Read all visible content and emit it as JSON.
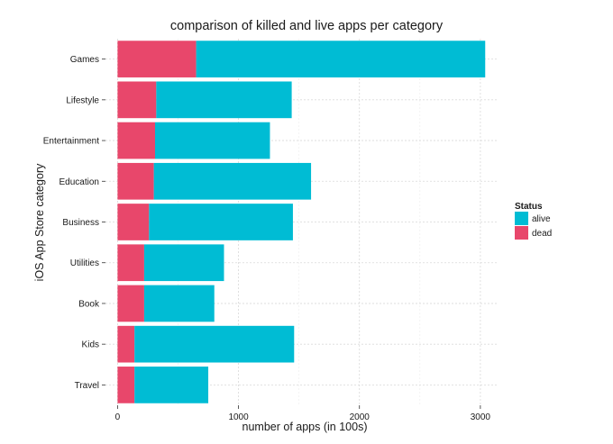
{
  "chart_data": {
    "type": "bar",
    "orientation": "horizontal",
    "stacked": true,
    "title": "comparison of killed and live apps per category",
    "xlabel": "number of apps (in 100s)",
    "ylabel": "iOS App Store category",
    "categories": [
      "Games",
      "Lifestyle",
      "Entertainment",
      "Education",
      "Business",
      "Utilities",
      "Book",
      "Kids",
      "Travel"
    ],
    "series": [
      {
        "name": "dead",
        "color": "#e8476b",
        "values": [
          650,
          320,
          310,
          300,
          260,
          220,
          220,
          140,
          140
        ]
      },
      {
        "name": "alive",
        "color": "#00bcd4",
        "values": [
          2390,
          1120,
          950,
          1300,
          1190,
          660,
          580,
          1320,
          610
        ]
      }
    ],
    "xlim": [
      -100,
      3150
    ],
    "xticks": [
      0,
      1000,
      2000,
      3000
    ],
    "xtick_labels": [
      "0",
      "1000",
      "2000",
      "3000"
    ],
    "grid": true,
    "legend": {
      "title": "Status",
      "placement": "right",
      "entries": [
        {
          "label": "alive",
          "color": "#00bcd4"
        },
        {
          "label": "dead",
          "color": "#e8476b"
        }
      ]
    }
  }
}
